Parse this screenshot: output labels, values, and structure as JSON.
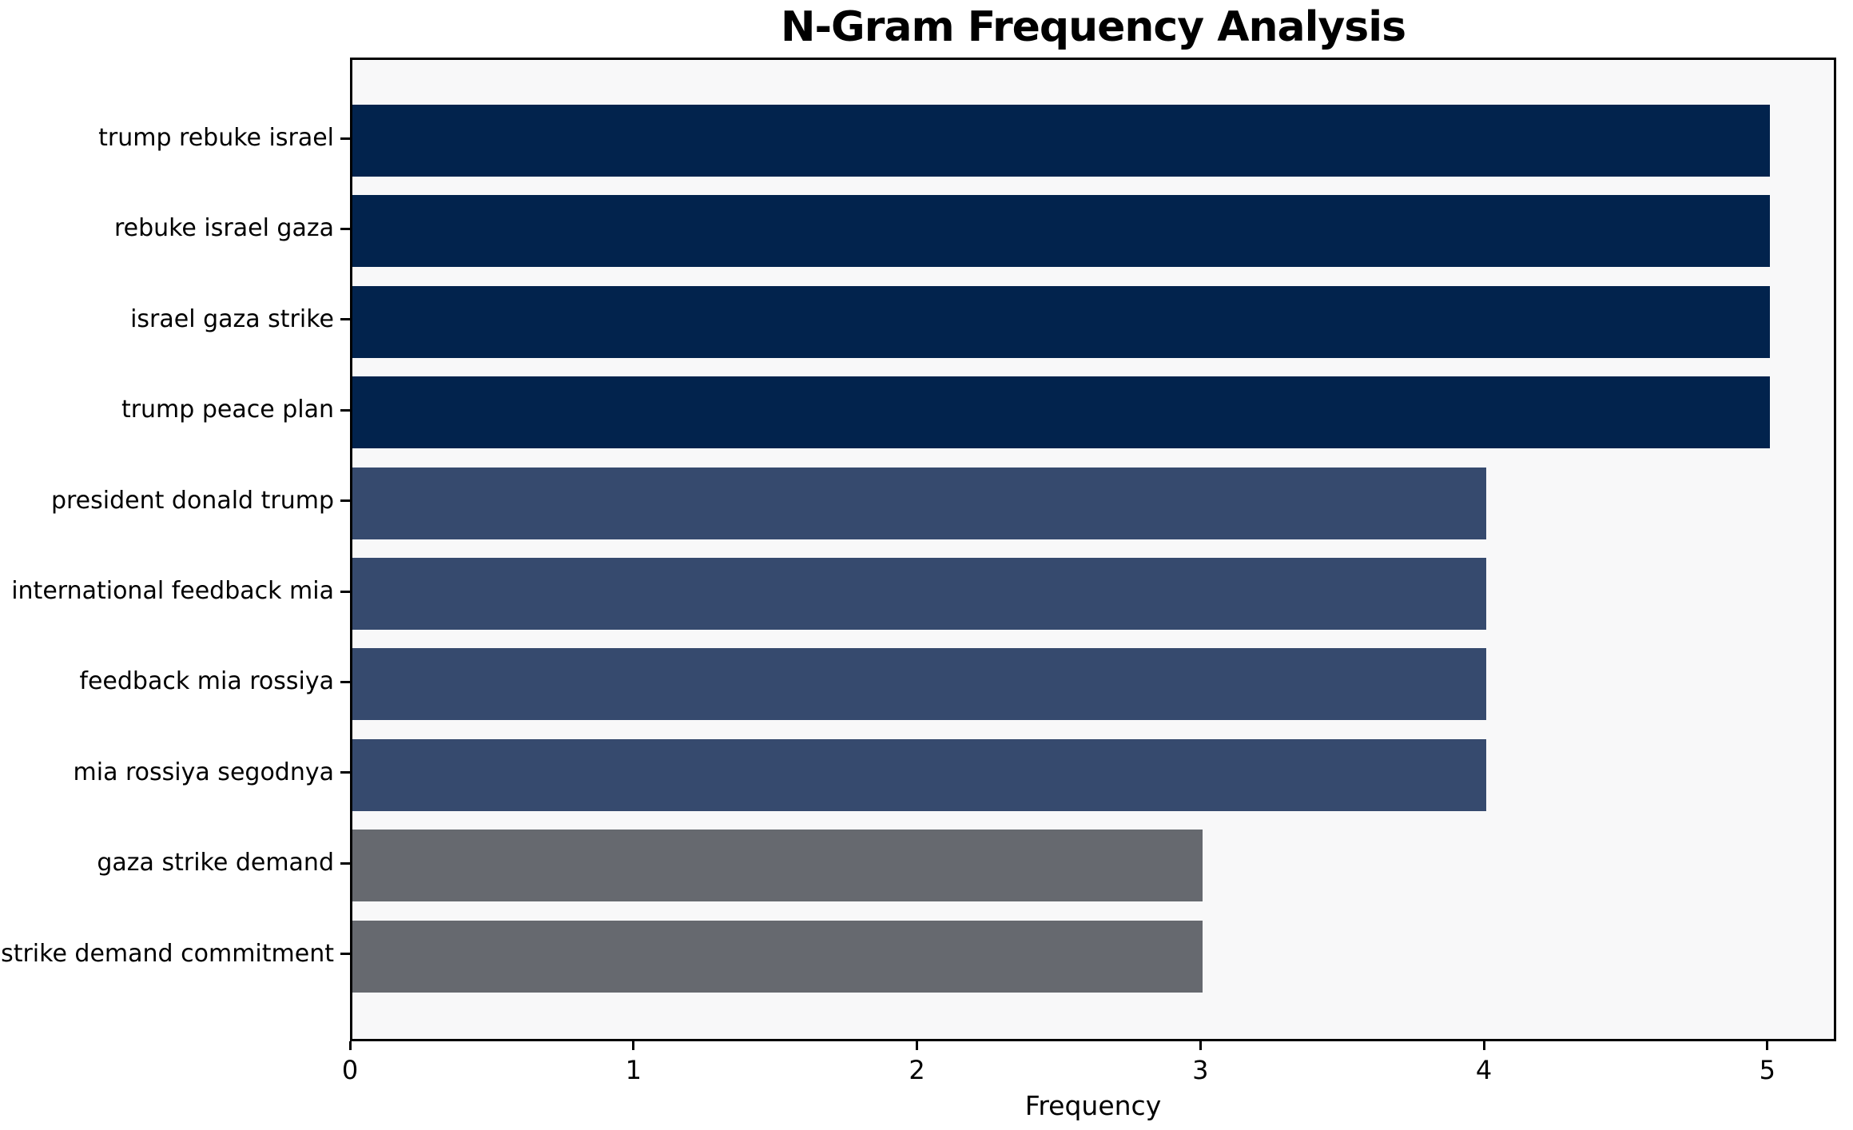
{
  "chart_data": {
    "type": "bar",
    "orientation": "horizontal",
    "title": "N-Gram Frequency Analysis",
    "xlabel": "Frequency",
    "ylabel": "",
    "categories": [
      "trump rebuke israel",
      "rebuke israel gaza",
      "israel gaza strike",
      "trump peace plan",
      "president donald trump",
      "international feedback mia",
      "feedback mia rossiya",
      "mia rossiya segodnya",
      "gaza strike demand",
      "strike demand commitment"
    ],
    "values": [
      5,
      5,
      5,
      5,
      4,
      4,
      4,
      4,
      3,
      3
    ],
    "bar_colors": [
      "#02234d",
      "#02234d",
      "#02234d",
      "#02234d",
      "#364a6e",
      "#364a6e",
      "#364a6e",
      "#364a6e",
      "#66696f",
      "#66696f"
    ],
    "x_ticks": [
      "0",
      "1",
      "2",
      "3",
      "4",
      "5"
    ],
    "xlim": [
      0,
      5.243
    ],
    "grid": false,
    "legend": null,
    "colors": {
      "plot_background": "#f8f8f9",
      "figure_background": "#ffffff",
      "spine": "#000000",
      "text": "#000000"
    }
  }
}
